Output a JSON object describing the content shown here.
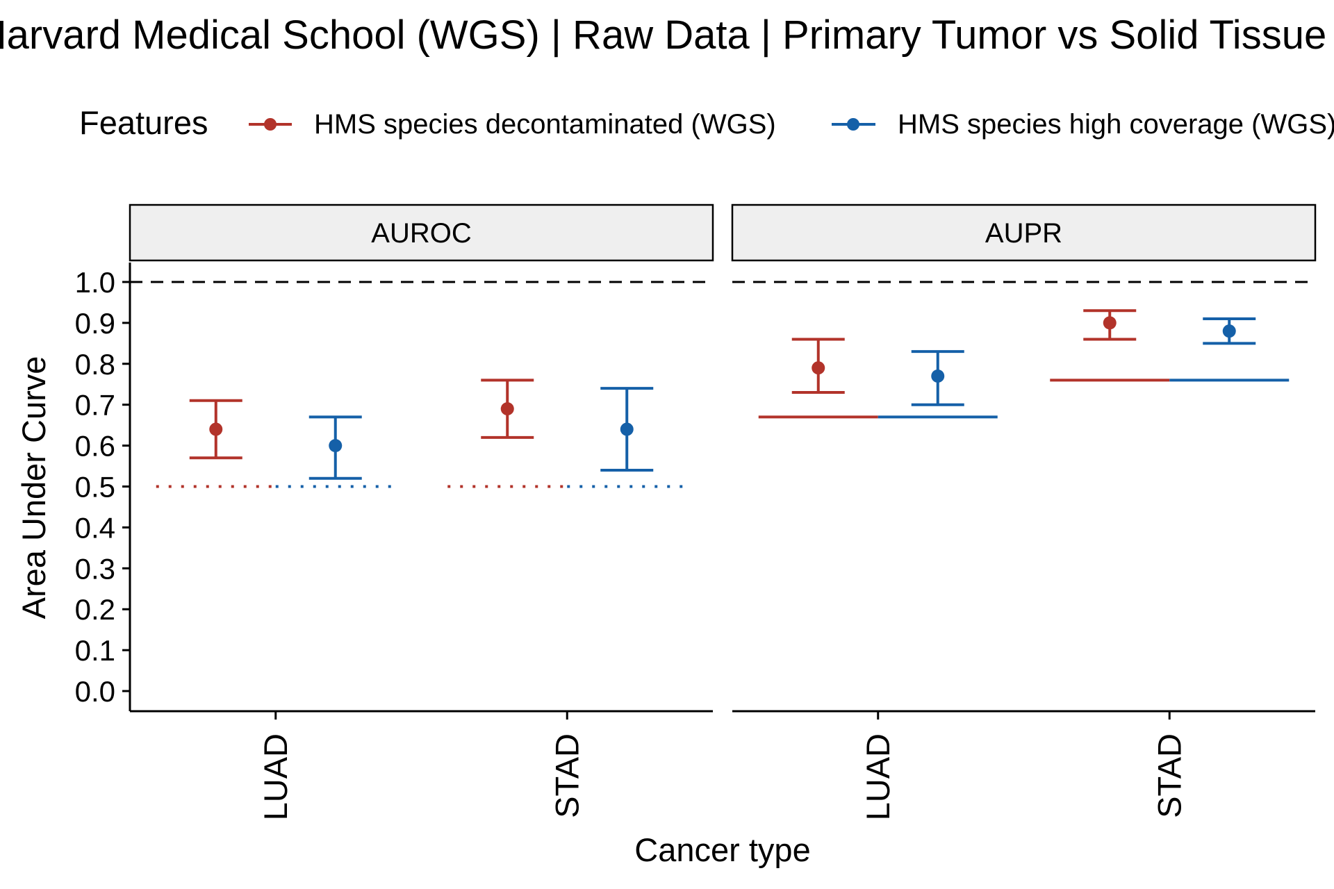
{
  "chart_data": {
    "type": "scatter",
    "title": "Harvard Medical School (WGS) | Raw Data | Primary Tumor vs Solid Tissue Normal",
    "xlabel": "Cancer type",
    "ylabel": "Area Under Curve",
    "legend": {
      "title": "Features",
      "position": "top",
      "items": [
        {
          "label": "HMS species decontaminated (WGS)",
          "color": "#b2332a"
        },
        {
          "label": "HMS species high coverage (WGS)",
          "color": "#1560a8"
        }
      ]
    },
    "categories": [
      "LUAD",
      "STAD"
    ],
    "ylim": [
      0,
      1
    ],
    "yticks": [
      "0.0",
      "0.1",
      "0.2",
      "0.3",
      "0.4",
      "0.5",
      "0.6",
      "0.7",
      "0.8",
      "0.9",
      "1.0"
    ],
    "grid": false,
    "reference_line": 1.0,
    "panels": [
      {
        "name": "AUROC",
        "series": [
          {
            "name": "HMS species decontaminated (WGS)",
            "color": "#b2332a",
            "values": [
              0.64,
              0.69
            ],
            "lower": [
              0.57,
              0.62
            ],
            "upper": [
              0.71,
              0.76
            ],
            "baseline": [
              0.5,
              0.5
            ]
          },
          {
            "name": "HMS species high coverage (WGS)",
            "color": "#1560a8",
            "values": [
              0.6,
              0.64
            ],
            "lower": [
              0.52,
              0.54
            ],
            "upper": [
              0.67,
              0.74
            ],
            "baseline": [
              0.5,
              0.5
            ]
          }
        ]
      },
      {
        "name": "AUPR",
        "series": [
          {
            "name": "HMS species decontaminated (WGS)",
            "color": "#b2332a",
            "values": [
              0.79,
              0.9
            ],
            "lower": [
              0.73,
              0.86
            ],
            "upper": [
              0.86,
              0.93
            ],
            "baseline": [
              0.67,
              0.76
            ]
          },
          {
            "name": "HMS species high coverage (WGS)",
            "color": "#1560a8",
            "values": [
              0.77,
              0.88
            ],
            "lower": [
              0.7,
              0.85
            ],
            "upper": [
              0.83,
              0.91
            ],
            "baseline": [
              0.67,
              0.76
            ]
          }
        ]
      }
    ]
  }
}
